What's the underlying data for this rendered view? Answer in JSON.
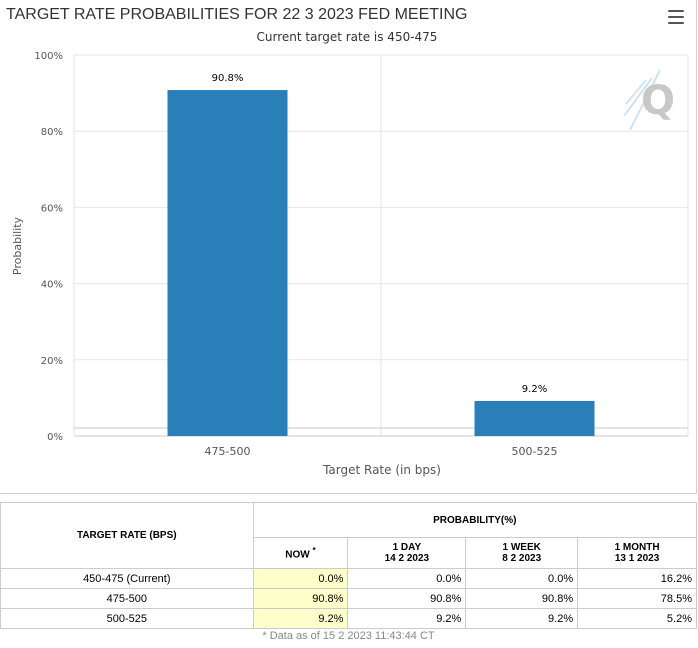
{
  "chart_data": {
    "type": "bar",
    "title": "TARGET RATE PROBABILITIES FOR 22 3 2023 FED MEETING",
    "subtitle": "Current target rate is 450-475",
    "categories": [
      "475-500",
      "500-525"
    ],
    "values": [
      90.8,
      9.2
    ],
    "data_labels": [
      "90.8%",
      "9.2%"
    ],
    "xlabel": "Target Rate (in bps)",
    "ylabel": "Probability",
    "ylim": [
      0,
      100
    ],
    "yticks": [
      0,
      20,
      40,
      60,
      80,
      100
    ],
    "ytick_labels": [
      "0%",
      "20%",
      "40%",
      "60%",
      "80%",
      "100%"
    ],
    "bar_color": "#2a7fb8",
    "grid": true,
    "legend": "none"
  },
  "toolbar": {
    "menu_icon": "hamburger-menu-icon"
  },
  "watermark": {
    "letter": "Q"
  },
  "table": {
    "rate_header": "TARGET RATE (BPS)",
    "prob_header": "PROBABILITY(%)",
    "columns": [
      {
        "title": "NOW",
        "mark": "*",
        "date": ""
      },
      {
        "title": "1 DAY",
        "date": "14 2 2023"
      },
      {
        "title": "1 WEEK",
        "date": "8 2 2023"
      },
      {
        "title": "1 MONTH",
        "date": "13 1 2023"
      }
    ],
    "rows": [
      {
        "rate": "450-475 (Current)",
        "values": [
          "0.0%",
          "0.0%",
          "0.0%",
          "16.2%"
        ]
      },
      {
        "rate": "475-500",
        "values": [
          "90.8%",
          "90.8%",
          "90.8%",
          "78.5%"
        ]
      },
      {
        "rate": "500-525",
        "values": [
          "9.2%",
          "9.2%",
          "9.2%",
          "5.2%"
        ]
      }
    ]
  },
  "footnote": "* Data as of 15 2 2023 11:43:44 CT"
}
